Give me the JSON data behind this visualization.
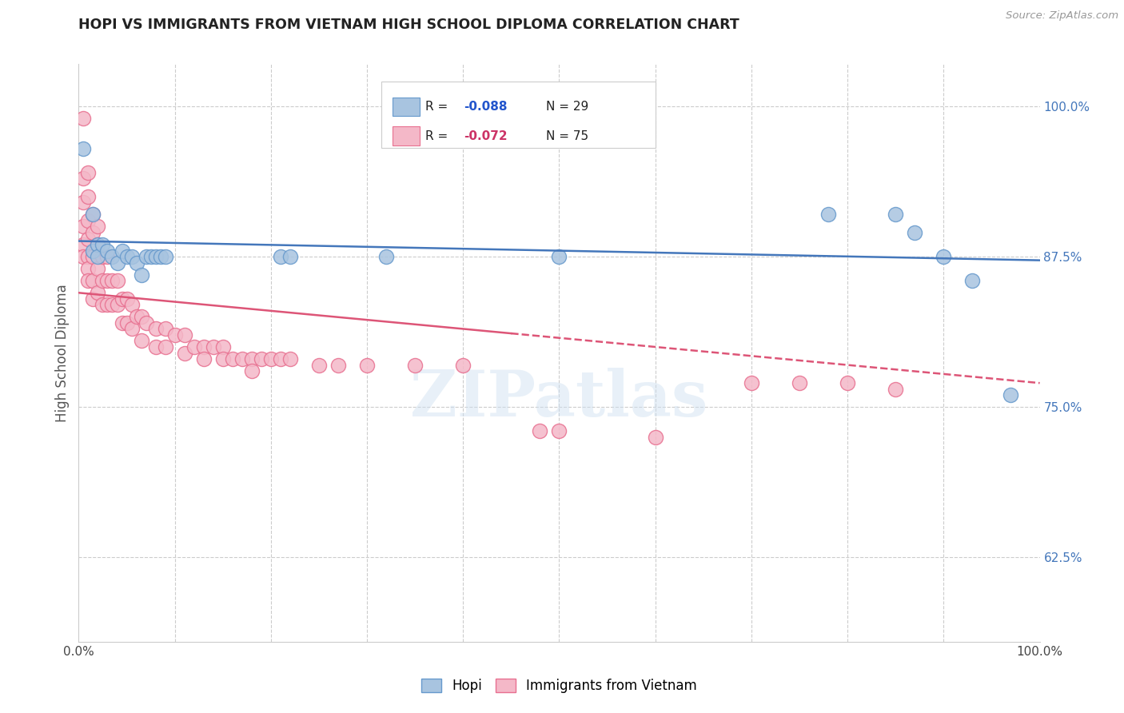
{
  "title": "HOPI VS IMMIGRANTS FROM VIETNAM HIGH SCHOOL DIPLOMA CORRELATION CHART",
  "source": "Source: ZipAtlas.com",
  "ylabel": "High School Diploma",
  "xlim": [
    0.0,
    1.0
  ],
  "ylim": [
    0.555,
    1.035
  ],
  "right_yticks": [
    0.625,
    0.75,
    0.875,
    1.0
  ],
  "right_yticklabels": [
    "62.5%",
    "75.0%",
    "87.5%",
    "100.0%"
  ],
  "hopi_color": "#a8c4e0",
  "hopi_edge_color": "#6699cc",
  "vietnam_color": "#f4b8c8",
  "vietnam_edge_color": "#e87090",
  "hopi_R": -0.088,
  "hopi_N": 29,
  "vietnam_R": -0.072,
  "vietnam_N": 75,
  "line_blue": "#4477bb",
  "line_pink": "#dd5577",
  "watermark": "ZIPatlas",
  "hopi_x": [
    0.005,
    0.015,
    0.015,
    0.02,
    0.02,
    0.025,
    0.03,
    0.035,
    0.04,
    0.045,
    0.05,
    0.055,
    0.06,
    0.065,
    0.07,
    0.075,
    0.08,
    0.085,
    0.09,
    0.21,
    0.22,
    0.32,
    0.5,
    0.78,
    0.85,
    0.87,
    0.9,
    0.93,
    0.97
  ],
  "hopi_y": [
    0.965,
    0.91,
    0.88,
    0.885,
    0.875,
    0.885,
    0.88,
    0.875,
    0.87,
    0.88,
    0.875,
    0.875,
    0.87,
    0.86,
    0.875,
    0.875,
    0.875,
    0.875,
    0.875,
    0.875,
    0.875,
    0.875,
    0.875,
    0.91,
    0.91,
    0.895,
    0.875,
    0.855,
    0.76
  ],
  "vietnam_x": [
    0.005,
    0.005,
    0.005,
    0.005,
    0.005,
    0.005,
    0.01,
    0.01,
    0.01,
    0.01,
    0.01,
    0.01,
    0.01,
    0.015,
    0.015,
    0.015,
    0.015,
    0.015,
    0.02,
    0.02,
    0.02,
    0.02,
    0.025,
    0.025,
    0.025,
    0.03,
    0.03,
    0.03,
    0.035,
    0.035,
    0.04,
    0.04,
    0.045,
    0.045,
    0.05,
    0.05,
    0.055,
    0.055,
    0.06,
    0.065,
    0.065,
    0.07,
    0.08,
    0.08,
    0.09,
    0.09,
    0.1,
    0.11,
    0.11,
    0.12,
    0.13,
    0.13,
    0.14,
    0.15,
    0.15,
    0.16,
    0.17,
    0.18,
    0.18,
    0.19,
    0.2,
    0.21,
    0.22,
    0.25,
    0.27,
    0.3,
    0.35,
    0.4,
    0.48,
    0.5,
    0.6,
    0.7,
    0.75,
    0.8,
    0.85
  ],
  "vietnam_y": [
    0.99,
    0.94,
    0.92,
    0.9,
    0.885,
    0.875,
    0.945,
    0.925,
    0.905,
    0.89,
    0.875,
    0.865,
    0.855,
    0.91,
    0.895,
    0.875,
    0.855,
    0.84,
    0.9,
    0.885,
    0.865,
    0.845,
    0.875,
    0.855,
    0.835,
    0.875,
    0.855,
    0.835,
    0.855,
    0.835,
    0.855,
    0.835,
    0.84,
    0.82,
    0.84,
    0.82,
    0.835,
    0.815,
    0.825,
    0.825,
    0.805,
    0.82,
    0.815,
    0.8,
    0.815,
    0.8,
    0.81,
    0.81,
    0.795,
    0.8,
    0.8,
    0.79,
    0.8,
    0.8,
    0.79,
    0.79,
    0.79,
    0.79,
    0.78,
    0.79,
    0.79,
    0.79,
    0.79,
    0.785,
    0.785,
    0.785,
    0.785,
    0.785,
    0.73,
    0.73,
    0.725,
    0.77,
    0.77,
    0.77,
    0.765
  ]
}
